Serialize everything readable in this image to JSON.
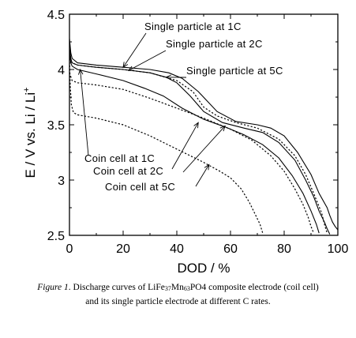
{
  "chart_data": {
    "type": "line",
    "xlabel": "DOD / %",
    "ylabel_main": "E / V vs. Li / Li",
    "ylabel_sup": "+",
    "xlim": [
      0,
      100
    ],
    "ylim": [
      2.5,
      4.5
    ],
    "xticks": [
      "0",
      "20",
      "40",
      "60",
      "80",
      "100"
    ],
    "yticks": [
      "2.5",
      "3",
      "3.5",
      "4",
      "4.5"
    ],
    "annotations": [
      {
        "text": "Single particle at 1C"
      },
      {
        "text": "Single particle at 2C"
      },
      {
        "text": "Single particle at 5C"
      },
      {
        "text": "Coin cell at 1C"
      },
      {
        "text": "Coin cell at 2C"
      },
      {
        "text": "Coin cell at 5C"
      }
    ],
    "series": [
      {
        "style": "solid",
        "points": [
          [
            0,
            4.28
          ],
          [
            0.5,
            4.15
          ],
          [
            1,
            4.1
          ],
          [
            3,
            4.06
          ],
          [
            10,
            4.04
          ],
          [
            20,
            4.02
          ],
          [
            30,
            4.0
          ],
          [
            37,
            3.97
          ],
          [
            42,
            3.92
          ],
          [
            48,
            3.8
          ],
          [
            55,
            3.62
          ],
          [
            62,
            3.53
          ],
          [
            70,
            3.5
          ],
          [
            75,
            3.47
          ],
          [
            80,
            3.4
          ],
          [
            85,
            3.25
          ],
          [
            90,
            3.05
          ],
          [
            93,
            2.88
          ],
          [
            96,
            2.75
          ],
          [
            97,
            2.68
          ],
          [
            98,
            2.62
          ],
          [
            99,
            2.58
          ],
          [
            100,
            2.55
          ]
        ]
      },
      {
        "style": "solid",
        "points": [
          [
            0,
            4.2
          ],
          [
            0.5,
            4.1
          ],
          [
            1,
            4.06
          ],
          [
            3,
            4.04
          ],
          [
            10,
            4.02
          ],
          [
            20,
            4.0
          ],
          [
            30,
            3.97
          ],
          [
            36,
            3.93
          ],
          [
            40,
            3.88
          ],
          [
            45,
            3.76
          ],
          [
            50,
            3.62
          ],
          [
            57,
            3.52
          ],
          [
            65,
            3.47
          ],
          [
            72,
            3.43
          ],
          [
            78,
            3.34
          ],
          [
            84,
            3.18
          ],
          [
            88,
            3.0
          ],
          [
            91,
            2.85
          ],
          [
            93,
            2.72
          ],
          [
            95,
            2.62
          ],
          [
            96,
            2.56
          ],
          [
            97,
            2.51
          ]
        ]
      },
      {
        "style": "solid",
        "points": [
          [
            0,
            4.15
          ],
          [
            0.5,
            4.06
          ],
          [
            1,
            4.03
          ],
          [
            3,
            4.0
          ],
          [
            10,
            3.96
          ],
          [
            20,
            3.9
          ],
          [
            28,
            3.83
          ],
          [
            35,
            3.76
          ],
          [
            42,
            3.65
          ],
          [
            50,
            3.55
          ],
          [
            58,
            3.48
          ],
          [
            65,
            3.41
          ],
          [
            72,
            3.32
          ],
          [
            78,
            3.2
          ],
          [
            83,
            3.04
          ],
          [
            87,
            2.88
          ],
          [
            90,
            2.72
          ],
          [
            92,
            2.6
          ],
          [
            93,
            2.52
          ]
        ]
      },
      {
        "style": "dotted",
        "points": [
          [
            0,
            4.1
          ],
          [
            1,
            4.06
          ],
          [
            3,
            4.04
          ],
          [
            10,
            4.02
          ],
          [
            20,
            4.0
          ],
          [
            30,
            3.97
          ],
          [
            40,
            3.9
          ],
          [
            46,
            3.8
          ],
          [
            50,
            3.66
          ],
          [
            55,
            3.58
          ],
          [
            62,
            3.52
          ],
          [
            70,
            3.47
          ],
          [
            78,
            3.37
          ],
          [
            84,
            3.22
          ],
          [
            88,
            3.05
          ],
          [
            91,
            2.88
          ],
          [
            94,
            2.7
          ],
          [
            95,
            2.6
          ],
          [
            96,
            2.52
          ]
        ]
      },
      {
        "style": "dotted",
        "points": [
          [
            0,
            3.97
          ],
          [
            1,
            3.9
          ],
          [
            3,
            3.88
          ],
          [
            10,
            3.86
          ],
          [
            20,
            3.82
          ],
          [
            30,
            3.74
          ],
          [
            40,
            3.65
          ],
          [
            50,
            3.56
          ],
          [
            60,
            3.46
          ],
          [
            68,
            3.36
          ],
          [
            75,
            3.22
          ],
          [
            80,
            3.08
          ],
          [
            84,
            2.92
          ],
          [
            87,
            2.78
          ],
          [
            89,
            2.66
          ],
          [
            90,
            2.58
          ],
          [
            91,
            2.52
          ]
        ]
      },
      {
        "style": "dotted",
        "points": [
          [
            0,
            4.1
          ],
          [
            0.3,
            3.85
          ],
          [
            0.7,
            3.68
          ],
          [
            1.5,
            3.61
          ],
          [
            3,
            3.59
          ],
          [
            10,
            3.56
          ],
          [
            20,
            3.5
          ],
          [
            30,
            3.4
          ],
          [
            40,
            3.28
          ],
          [
            50,
            3.16
          ],
          [
            56,
            3.08
          ],
          [
            60,
            3.02
          ],
          [
            64,
            2.92
          ],
          [
            67,
            2.8
          ],
          [
            69,
            2.7
          ],
          [
            71,
            2.6
          ],
          [
            72,
            2.52
          ]
        ]
      }
    ]
  },
  "caption": {
    "figure_label": "Figure 1",
    "text_before": ". Discharge curves of LiFe",
    "sub1": "37",
    "text_mid": "Mn",
    "sub2": "63",
    "text_after": "PO4 composite electrode (coil cell)",
    "line2": "and its single particle electrode at different C rates."
  }
}
